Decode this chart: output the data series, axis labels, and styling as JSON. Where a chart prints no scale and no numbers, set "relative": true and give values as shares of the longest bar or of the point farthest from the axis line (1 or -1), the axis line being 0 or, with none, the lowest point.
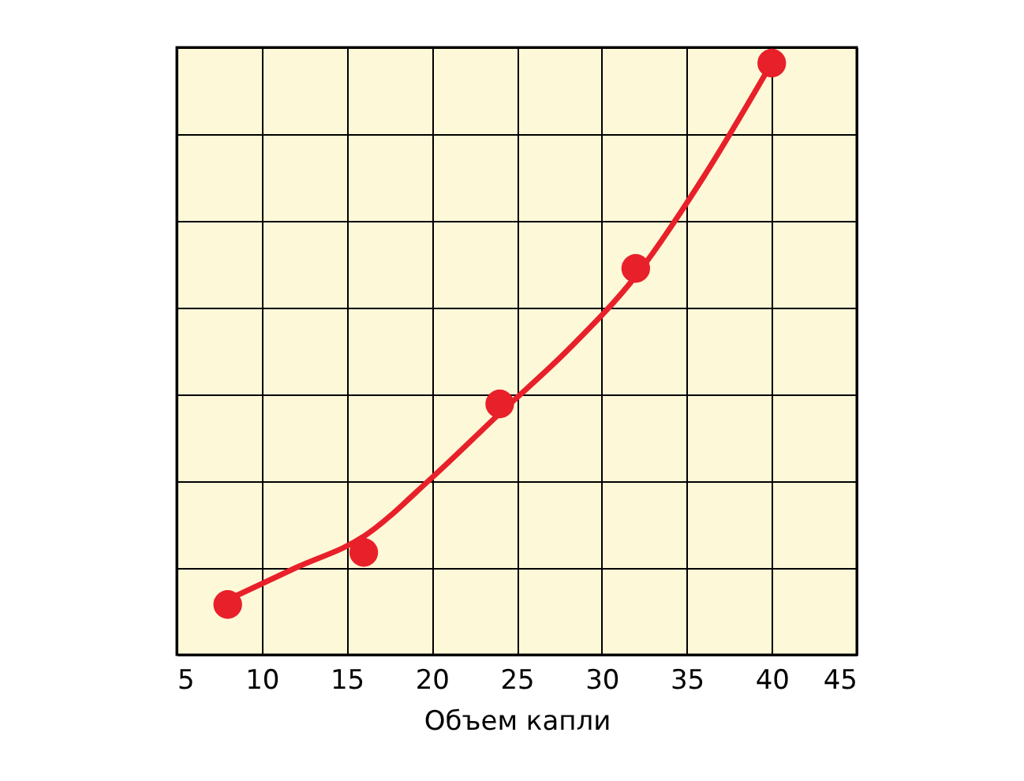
{
  "chart_data": {
    "type": "scatter",
    "xlabel": "Объем капли",
    "relative": true,
    "xlim": [
      5,
      45
    ],
    "xticks": [
      5,
      10,
      15,
      20,
      25,
      30,
      35,
      40,
      45
    ],
    "grid": true,
    "legend": false,
    "marker": "circle",
    "series": [
      {
        "color": "#e8202a",
        "x": [
          8,
          16,
          24,
          32,
          40
        ],
        "values": [
          0.085,
          0.173,
          0.424,
          0.653,
          1
        ]
      },
      {
        "type": "line",
        "color": "#e8202a",
        "line_style": "solid",
        "marker": "none",
        "x": [
          8,
          12,
          16,
          20,
          24,
          28,
          32,
          36,
          40
        ],
        "values": [
          0.093,
          0.147,
          0.2,
          0.299,
          0.408,
          0.515,
          0.64,
          0.808,
          1
        ]
      }
    ]
  }
}
